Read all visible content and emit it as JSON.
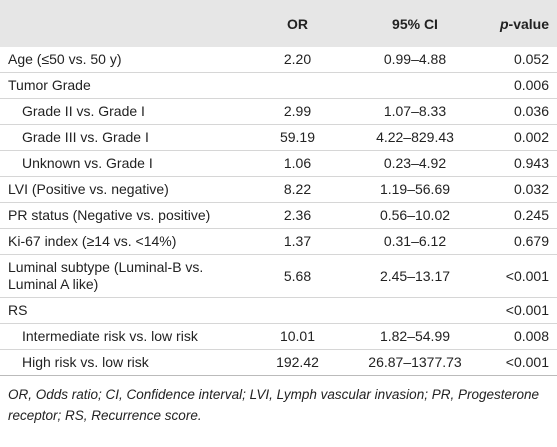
{
  "header": {
    "or": "OR",
    "ci": "95% CI",
    "p_italic": "p",
    "p_rest": "-value"
  },
  "rows": [
    {
      "label": "Age (≤50 vs. 50 y)",
      "or": "2.20",
      "ci": "0.99–4.88",
      "p": "0.052"
    },
    {
      "label": "Tumor Grade",
      "p": "0.006"
    },
    {
      "label": "Grade II vs. Grade I",
      "indent": true,
      "or": "2.99",
      "ci": "1.07–8.33",
      "p": "0.036"
    },
    {
      "label": "Grade III vs. Grade I",
      "indent": true,
      "or": "59.19",
      "ci": "4.22–829.43",
      "p": "0.002"
    },
    {
      "label": "Unknown vs. Grade I",
      "indent": true,
      "or": "1.06",
      "ci": "0.23–4.92",
      "p": "0.943"
    },
    {
      "label": "LVI (Positive vs. negative)",
      "or": "8.22",
      "ci": "1.19–56.69",
      "p": "0.032"
    },
    {
      "label": "PR status (Negative vs. positive)",
      "or": "2.36",
      "ci": "0.56–10.02",
      "p": "0.245"
    },
    {
      "label": "Ki-67 index (≥14 vs. <14%)",
      "or": "1.37",
      "ci": "0.31–6.12",
      "p": "0.679"
    },
    {
      "label": "Luminal subtype (Luminal-B vs. Luminal A like)",
      "or": "5.68",
      "ci": "2.45–13.17",
      "p": "<0.001"
    },
    {
      "label": "RS",
      "p": "<0.001"
    },
    {
      "label": "Intermediate risk vs. low risk",
      "indent": true,
      "or": "10.01",
      "ci": "1.82–54.99",
      "p": "0.008"
    },
    {
      "label": "High risk vs. low risk",
      "indent": true,
      "or": "192.42",
      "ci": "26.87–1377.73",
      "p": "<0.001"
    }
  ],
  "footnote": "OR, Odds ratio; CI, Confidence interval; LVI, Lymph vascular invasion; PR, Progesterone receptor; RS, Recurrence score."
}
